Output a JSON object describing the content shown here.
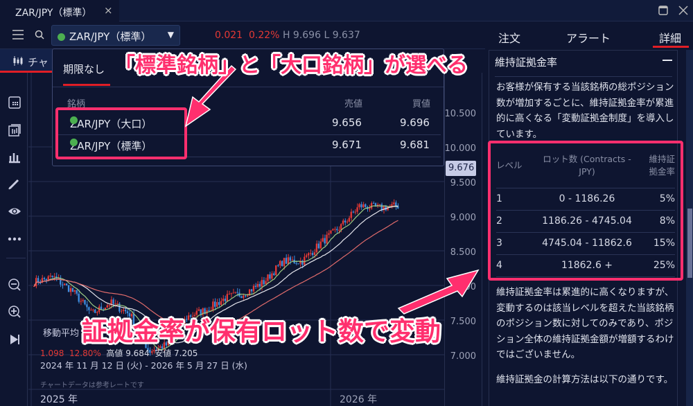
{
  "window": {
    "tab_title": "ZAR/JPY（標準）",
    "close_icon": "×"
  },
  "toolbar": {
    "symbol": "ZAR/JPY（標準）",
    "change": "0.021",
    "change_pct": "0.22%",
    "high": "H 9.696",
    "low": "L 9.637"
  },
  "chart_tab": {
    "label": "チャ"
  },
  "dropdown": {
    "tab": "期限なし",
    "headers": [
      "銘柄",
      "売値",
      "買値"
    ],
    "rows": [
      {
        "name": "ZAR/JPY（大口）",
        "bid": "9.656",
        "ask": "9.696"
      },
      {
        "name": "ZAR/JPY（標準）",
        "bid": "9.671",
        "ask": "9.681"
      }
    ]
  },
  "chart": {
    "current_price": "9.676",
    "y_ticks": [
      "10.500",
      "10.000",
      "9.500",
      "9.000",
      "8.500",
      "8.000",
      "7.500",
      "7.000"
    ],
    "x_ticks": [
      "2025 年",
      "2026 年"
    ],
    "indicator_label": "移動平均",
    "stats": {
      "change": "1.098",
      "change_pct": "12.80%",
      "high": "高値 9.684",
      "low": "安値 7.205"
    },
    "date_range": "2024 年 11 月 12 日 (火) - 2026 年 5 月 27 日 (水)",
    "note": "チャートデータは参考レートです",
    "colors": {
      "up": "#e53935",
      "down": "#3f8ee0",
      "ma_short": "#9ccc84",
      "ma_mid": "#e6e6ee",
      "ma_long": "#e06b6b"
    }
  },
  "chart_data": {
    "type": "candlestick",
    "ylim": [
      7.0,
      10.5
    ],
    "approx_close_path": [
      8.55,
      8.62,
      8.42,
      8.09,
      8.25,
      8.09,
      7.55,
      7.65,
      8.05,
      8.15,
      8.32,
      8.39,
      8.55,
      8.85,
      8.85,
      9.12,
      9.35,
      9.65,
      9.62,
      9.65
    ]
  },
  "right_panel": {
    "tabs": [
      "注文",
      "アラート",
      "詳細"
    ],
    "section_title": "維持証拠金率",
    "intro": "お客様が保有する当該銘柄の総ポジション数が増加するごとに、維持証拠金率が累進的に高くなる「変動証拠金制度」を導入しています。",
    "table": {
      "headers": [
        "レベル",
        "ロット数 (Contracts - JPY)",
        "維持証拠金率"
      ],
      "rows": [
        [
          "1",
          "0 - 1186.26",
          "5%"
        ],
        [
          "2",
          "1186.26 - 4745.04",
          "8%"
        ],
        [
          "3",
          "4745.04 - 11862.6",
          "15%"
        ],
        [
          "4",
          "11862.6 +",
          "25%"
        ]
      ]
    },
    "note": "維持証拠金率は累進的に高くなりますが、変動するのは該当レベルを超えた当該銘柄のポジション数に対してのみであり、ポジション全体の維持証拠金額が増額するわけではございません。",
    "calc": "維持証拠金の計算方法は以下の通りです。"
  },
  "annotations": {
    "top": "「標準銘柄」と「大口銘柄」が選べる",
    "bottom": "証拠金率が保有ロット数で変動",
    "color": "#ff2f6e"
  }
}
